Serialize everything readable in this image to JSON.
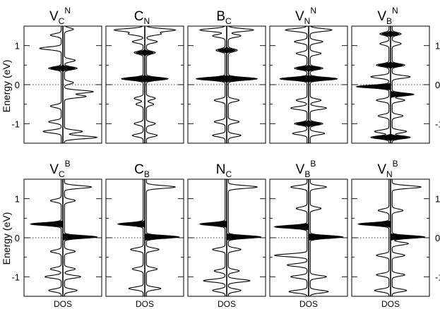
{
  "chart_data": {
    "type": "line",
    "ylabel": "Energy (eV)",
    "xlabel": "DOS",
    "ylim": [
      -1.5,
      1.5
    ],
    "yticks": [
      -1,
      0,
      1
    ],
    "ytick_labels": [
      "-1",
      "0",
      "1"
    ],
    "fermi_level": 0,
    "fermi_line_style": "dotted",
    "rows": [
      {
        "panels": [
          {
            "title": "V",
            "sub": "C",
            "sup": "N",
            "peaks": [
              {
                "e": 1.42,
                "h": 0.25,
                "s": "up"
              },
              {
                "e": 1.27,
                "h": 0.3,
                "s": "dn"
              },
              {
                "e": 0.93,
                "h": 0.6,
                "s": "dn"
              },
              {
                "e": 0.62,
                "h": 0.3,
                "s": "up"
              },
              {
                "e": 0.42,
                "h": 0.35,
                "s": "both",
                "f": true
              },
              {
                "e": 0.05,
                "h": 0.25,
                "s": "up"
              },
              {
                "e": -0.18,
                "h": 0.8,
                "s": "up"
              },
              {
                "e": -0.3,
                "h": 0.6,
                "s": "up"
              },
              {
                "e": -0.55,
                "h": 0.3,
                "s": "dn"
              },
              {
                "e": -0.95,
                "h": 0.35,
                "s": "dn"
              },
              {
                "e": -1.2,
                "h": 0.5,
                "s": "both"
              },
              {
                "e": -1.35,
                "h": 0.9,
                "s": "up"
              }
            ]
          },
          {
            "title": "C",
            "sub": "N",
            "sup": "",
            "peaks": [
              {
                "e": 1.4,
                "h": 0.8,
                "s": "both"
              },
              {
                "e": 1.3,
                "h": 0.4,
                "s": "both"
              },
              {
                "e": 1.1,
                "h": 0.3,
                "s": "both"
              },
              {
                "e": 0.82,
                "h": 0.25,
                "s": "both",
                "f": true
              },
              {
                "e": 0.15,
                "h": 0.6,
                "s": "both",
                "f": true
              },
              {
                "e": -0.35,
                "h": 0.25,
                "s": "both"
              },
              {
                "e": -0.5,
                "h": 0.2,
                "s": "both"
              },
              {
                "e": -1.0,
                "h": 0.25,
                "s": "both"
              },
              {
                "e": -1.3,
                "h": 0.3,
                "s": "both"
              }
            ]
          },
          {
            "title": "B",
            "sub": "C",
            "sup": "",
            "peaks": [
              {
                "e": 1.4,
                "h": 0.7,
                "s": "both"
              },
              {
                "e": 1.25,
                "h": 0.35,
                "s": "both"
              },
              {
                "e": 0.88,
                "h": 0.25,
                "s": "both",
                "f": true
              },
              {
                "e": 0.15,
                "h": 0.8,
                "s": "both",
                "f": true
              },
              {
                "e": -0.4,
                "h": 0.3,
                "s": "both"
              },
              {
                "e": -0.95,
                "h": 0.3,
                "s": "both"
              },
              {
                "e": -1.3,
                "h": 0.35,
                "s": "both"
              }
            ]
          },
          {
            "title": "V",
            "sub": "N",
            "sup": "N",
            "peaks": [
              {
                "e": 1.4,
                "h": 0.6,
                "s": "both"
              },
              {
                "e": 1.1,
                "h": 0.35,
                "s": "both"
              },
              {
                "e": 0.8,
                "h": 0.3,
                "s": "both"
              },
              {
                "e": 0.42,
                "h": 0.35,
                "s": "both",
                "f": true
              },
              {
                "e": 0.15,
                "h": 0.75,
                "s": "both",
                "f": true
              },
              {
                "e": -0.4,
                "h": 0.3,
                "s": "both"
              },
              {
                "e": -0.6,
                "h": 0.45,
                "s": "both"
              },
              {
                "e": -1.0,
                "h": 0.35,
                "s": "both",
                "f": true
              },
              {
                "e": -1.25,
                "h": 0.4,
                "s": "both"
              }
            ]
          },
          {
            "title": "V",
            "sub": "B",
            "sup": "N",
            "peaks": [
              {
                "e": 1.3,
                "h": 0.25,
                "s": "both",
                "f": true
              },
              {
                "e": 1.05,
                "h": 0.25,
                "s": "both"
              },
              {
                "e": 0.5,
                "h": 0.35,
                "s": "both",
                "f": true
              },
              {
                "e": 0.2,
                "h": 0.5,
                "s": "both"
              },
              {
                "e": -0.05,
                "h": 0.9,
                "s": "dn",
                "f": true
              },
              {
                "e": -0.25,
                "h": 0.6,
                "s": "up",
                "f": true
              },
              {
                "e": -0.4,
                "h": 0.35,
                "s": "both"
              },
              {
                "e": -0.8,
                "h": 0.3,
                "s": "both"
              },
              {
                "e": -1.2,
                "h": 0.4,
                "s": "both"
              },
              {
                "e": -1.35,
                "h": 0.5,
                "s": "both",
                "f": true
              }
            ]
          }
        ]
      },
      {
        "panels": [
          {
            "title": "V",
            "sub": "C",
            "sup": "B",
            "peaks": [
              {
                "e": 1.3,
                "h": 0.75,
                "s": "up"
              },
              {
                "e": 0.95,
                "h": 0.3,
                "s": "both"
              },
              {
                "e": 0.35,
                "h": 0.85,
                "s": "dn",
                "f": true
              },
              {
                "e": 0.02,
                "h": 0.9,
                "s": "up",
                "f": true
              },
              {
                "e": -0.35,
                "h": 0.3,
                "s": "both"
              },
              {
                "e": -0.8,
                "h": 0.3,
                "s": "both"
              },
              {
                "e": -1.0,
                "h": 0.45,
                "s": "both"
              },
              {
                "e": -1.35,
                "h": 0.35,
                "s": "both"
              }
            ]
          },
          {
            "title": "C",
            "sub": "B",
            "sup": "",
            "peaks": [
              {
                "e": 1.3,
                "h": 0.8,
                "s": "up"
              },
              {
                "e": 0.35,
                "h": 0.7,
                "s": "dn",
                "f": true
              },
              {
                "e": 0.02,
                "h": 0.9,
                "s": "up",
                "f": true
              },
              {
                "e": -0.3,
                "h": 0.35,
                "s": "both"
              },
              {
                "e": -0.8,
                "h": 0.3,
                "s": "both"
              },
              {
                "e": -1.3,
                "h": 0.4,
                "s": "both"
              }
            ]
          },
          {
            "title": "N",
            "sub": "C",
            "sup": "",
            "peaks": [
              {
                "e": 1.3,
                "h": 0.8,
                "s": "up"
              },
              {
                "e": 0.35,
                "h": 0.7,
                "s": "dn",
                "f": true
              },
              {
                "e": 0.02,
                "h": 0.9,
                "s": "up",
                "f": true
              },
              {
                "e": -0.3,
                "h": 0.35,
                "s": "both"
              },
              {
                "e": -0.85,
                "h": 0.3,
                "s": "both"
              },
              {
                "e": -1.1,
                "h": 0.6,
                "s": "both"
              },
              {
                "e": -1.35,
                "h": 0.35,
                "s": "both"
              }
            ]
          },
          {
            "title": "V",
            "sub": "B",
            "sup": "B",
            "peaks": [
              {
                "e": 1.3,
                "h": 0.45,
                "s": "both"
              },
              {
                "e": 0.75,
                "h": 0.3,
                "s": "both"
              },
              {
                "e": 0.28,
                "h": 0.9,
                "s": "dn",
                "f": true
              },
              {
                "e": 0.02,
                "h": 0.9,
                "s": "up",
                "f": true
              },
              {
                "e": -0.45,
                "h": 0.9,
                "s": "dn"
              },
              {
                "e": -0.7,
                "h": 0.55,
                "s": "dn"
              },
              {
                "e": -1.0,
                "h": 0.45,
                "s": "both"
              },
              {
                "e": -1.38,
                "h": 0.5,
                "s": "both"
              }
            ]
          },
          {
            "title": "V",
            "sub": "N",
            "sup": "B",
            "peaks": [
              {
                "e": 1.3,
                "h": 0.8,
                "s": "up"
              },
              {
                "e": 0.7,
                "h": 0.3,
                "s": "both"
              },
              {
                "e": 0.35,
                "h": 0.85,
                "s": "dn",
                "f": true
              },
              {
                "e": 0.02,
                "h": 0.9,
                "s": "up",
                "f": true
              },
              {
                "e": -0.15,
                "h": 0.45,
                "s": "up"
              },
              {
                "e": -0.45,
                "h": 0.35,
                "s": "both"
              },
              {
                "e": -0.95,
                "h": 0.35,
                "s": "both"
              },
              {
                "e": -1.35,
                "h": 0.4,
                "s": "both"
              }
            ]
          }
        ]
      }
    ]
  }
}
